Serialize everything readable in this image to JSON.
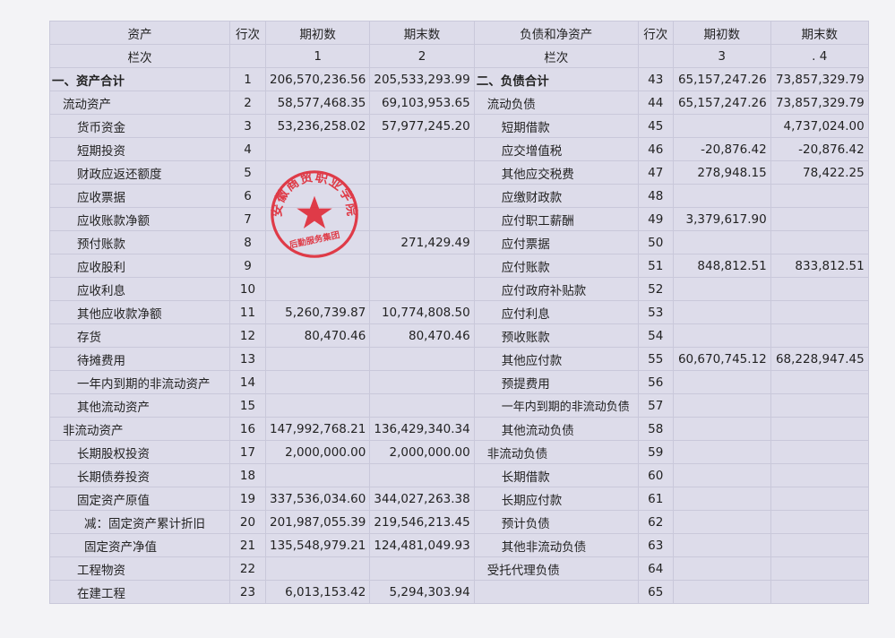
{
  "header": {
    "left_title": "资产",
    "line_label": "行次",
    "begin": "期初数",
    "end": "期末数",
    "right_title": "负债和净资产",
    "col_label": "栏次",
    "col1": "1",
    "col2": "2",
    "col3": "3",
    "col4": ". 4",
    "dot": "."
  },
  "left_rows": [
    {
      "label": "一、资产合计",
      "line": "1",
      "begin": "206,570,236.56",
      "end": "205,533,293.99",
      "level": 0,
      "bold": true
    },
    {
      "label": "流动资产",
      "line": "2",
      "begin": "58,577,468.35",
      "end": "69,103,953.65",
      "level": 1
    },
    {
      "label": "货币资金",
      "line": "3",
      "begin": "53,236,258.02",
      "end": "57,977,245.20",
      "level": 2
    },
    {
      "label": "短期投资",
      "line": "4",
      "begin": "",
      "end": "",
      "level": 2
    },
    {
      "label": "财政应返还额度",
      "line": "5",
      "begin": "",
      "end": "",
      "level": 2
    },
    {
      "label": "应收票据",
      "line": "6",
      "begin": "",
      "end": "",
      "level": 2
    },
    {
      "label": "应收账款净额",
      "line": "7",
      "begin": "",
      "end": "",
      "level": 2
    },
    {
      "label": "预付账款",
      "line": "8",
      "begin": "",
      "end": "271,429.49",
      "level": 2
    },
    {
      "label": "应收股利",
      "line": "9",
      "begin": "",
      "end": "",
      "level": 2
    },
    {
      "label": "应收利息",
      "line": "10",
      "begin": "",
      "end": "",
      "level": 2
    },
    {
      "label": "其他应收款净额",
      "line": "11",
      "begin": "5,260,739.87",
      "end": "10,774,808.50",
      "level": 2
    },
    {
      "label": "存货",
      "line": "12",
      "begin": "80,470.46",
      "end": "80,470.46",
      "level": 2
    },
    {
      "label": "待摊费用",
      "line": "13",
      "begin": "",
      "end": "",
      "level": 2
    },
    {
      "label": "一年内到期的非流动资产",
      "line": "14",
      "begin": "",
      "end": "",
      "level": 2
    },
    {
      "label": "其他流动资产",
      "line": "15",
      "begin": "",
      "end": "",
      "level": 2
    },
    {
      "label": "非流动资产",
      "line": "16",
      "begin": "147,992,768.21",
      "end": "136,429,340.34",
      "level": 1
    },
    {
      "label": "长期股权投资",
      "line": "17",
      "begin": "2,000,000.00",
      "end": "2,000,000.00",
      "level": 2
    },
    {
      "label": "长期债券投资",
      "line": "18",
      "begin": "",
      "end": "",
      "level": 2
    },
    {
      "label": "固定资产原值",
      "line": "19",
      "begin": "337,536,034.60",
      "end": "344,027,263.38",
      "level": 2
    },
    {
      "label": "减：固定资产累计折旧",
      "line": "20",
      "begin": "201,987,055.39",
      "end": "219,546,213.45",
      "level": 3
    },
    {
      "label": "固定资产净值",
      "line": "21",
      "begin": "135,548,979.21",
      "end": "124,481,049.93",
      "level": 3
    },
    {
      "label": "工程物资",
      "line": "22",
      "begin": "",
      "end": "",
      "level": 2
    },
    {
      "label": "在建工程",
      "line": "23",
      "begin": "6,013,153.42",
      "end": "5,294,303.94",
      "level": 2
    }
  ],
  "right_rows": [
    {
      "label": "二、负债合计",
      "line": "43",
      "begin": "65,157,247.26",
      "end": "73,857,329.79",
      "level": 0,
      "bold": true
    },
    {
      "label": "流动负债",
      "line": "44",
      "begin": "65,157,247.26",
      "end": "73,857,329.79",
      "level": 1
    },
    {
      "label": "短期借款",
      "line": "45",
      "begin": "",
      "end": "4,737,024.00",
      "level": 2
    },
    {
      "label": "应交增值税",
      "line": "46",
      "begin": "-20,876.42",
      "end": "-20,876.42",
      "level": 2
    },
    {
      "label": "其他应交税费",
      "line": "47",
      "begin": "278,948.15",
      "end": "78,422.25",
      "level": 2
    },
    {
      "label": "应缴财政款",
      "line": "48",
      "begin": "",
      "end": "",
      "level": 2
    },
    {
      "label": "应付职工薪酬",
      "line": "49",
      "begin": "3,379,617.90",
      "end": "",
      "level": 2
    },
    {
      "label": "应付票据",
      "line": "50",
      "begin": "",
      "end": "",
      "level": 2
    },
    {
      "label": "应付账款",
      "line": "51",
      "begin": "848,812.51",
      "end": "833,812.51",
      "level": 2
    },
    {
      "label": "应付政府补贴款",
      "line": "52",
      "begin": "",
      "end": "",
      "level": 2
    },
    {
      "label": "应付利息",
      "line": "53",
      "begin": "",
      "end": "",
      "level": 2
    },
    {
      "label": "预收账款",
      "line": "54",
      "begin": "",
      "end": "",
      "level": 2
    },
    {
      "label": "其他应付款",
      "line": "55",
      "begin": "60,670,745.12",
      "end": "68,228,947.45",
      "level": 2
    },
    {
      "label": "预提费用",
      "line": "56",
      "begin": "",
      "end": "",
      "level": 2
    },
    {
      "label": "一年内到期的非流动负债",
      "line": "57",
      "begin": "",
      "end": "",
      "level": 2,
      "wrap": true
    },
    {
      "label": "其他流动负债",
      "line": "58",
      "begin": "",
      "end": "",
      "level": 2
    },
    {
      "label": "非流动负债",
      "line": "59",
      "begin": "",
      "end": "",
      "level": 1
    },
    {
      "label": "长期借款",
      "line": "60",
      "begin": "",
      "end": "",
      "level": 2
    },
    {
      "label": "长期应付款",
      "line": "61",
      "begin": "",
      "end": "",
      "level": 2
    },
    {
      "label": "预计负债",
      "line": "62",
      "begin": "",
      "end": "",
      "level": 2
    },
    {
      "label": "其他非流动负债",
      "line": "63",
      "begin": "",
      "end": "",
      "level": 2
    },
    {
      "label": "受托代理负债",
      "line": "64",
      "begin": "",
      "end": "",
      "level": 1
    },
    {
      "label": "",
      "line": "65",
      "begin": "",
      "end": "",
      "level": 1
    }
  ],
  "stamp": {
    "outer_text": "安徽商贸职业学院",
    "inner_text": "后勤服务集团",
    "color": "#e0202c"
  }
}
